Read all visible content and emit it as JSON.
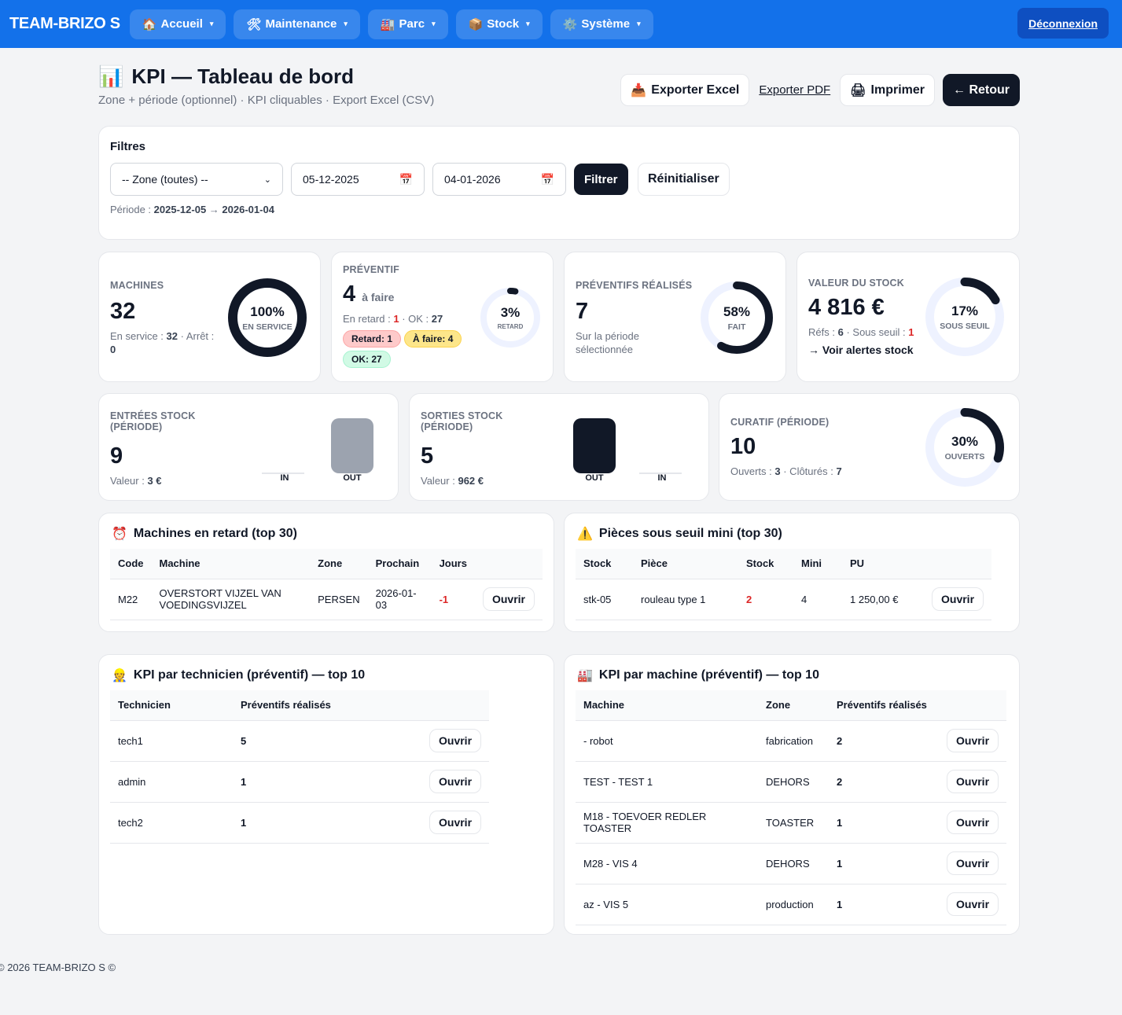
{
  "nav": {
    "brand": "TEAM-BRIZO S",
    "items": [
      {
        "icon": "🏠",
        "label": "Accueil"
      },
      {
        "icon": "🛠",
        "label": "Maintenance"
      },
      {
        "icon": "🏭",
        "label": "Parc"
      },
      {
        "icon": "📦",
        "label": "Stock"
      },
      {
        "icon": "⚙️",
        "label": "Système"
      }
    ],
    "caret": "▾",
    "logout": "Déconnexion"
  },
  "header": {
    "icon": "📊",
    "title": "KPI — Tableau de bord",
    "subtitle": "Zone + période (optionnel) · KPI cliquables · Export Excel (CSV)",
    "export_excel": "Exporter Excel",
    "export_excel_icon": "📥",
    "export_pdf": "Exporter PDF",
    "print": "Imprimer",
    "print_icon": "🖨",
    "back": "← Retour"
  },
  "filters": {
    "title": "Filtres",
    "zone": "-- Zone (toutes) --",
    "date_from": "05-12-2025",
    "date_to": "04-01-2026",
    "filter": "Filtrer",
    "reset": "Réinitialiser",
    "period_label": "Période :",
    "period_from": "2025-12-05",
    "arrow": "→",
    "period_to": "2026-01-04"
  },
  "kpis": {
    "machines": {
      "label": "Machines",
      "value": "32",
      "s1": "En service :",
      "in_service": "32",
      "s2": "· Arrêt :",
      "stopped": "0",
      "percent": 100,
      "pct_text": "100%",
      "donut_label": "En service"
    },
    "preventif": {
      "label": "Préventif",
      "value": "4",
      "unit": "à faire",
      "s1": "En retard :",
      "late": "1",
      "s2": "· OK :",
      "ok": "27",
      "pills": [
        "Retard: 1",
        "À faire: 4",
        "OK: 27"
      ],
      "percent": 3,
      "pct_text": "3%",
      "donut_label": "Retard"
    },
    "realises": {
      "label": "Préventifs réalisés",
      "value": "7",
      "sub": "Sur la période sélectionnée",
      "percent": 58,
      "pct_text": "58%",
      "donut_label": "Fait"
    },
    "stock_value": {
      "label": "Valeur du stock",
      "value": "4 816 €",
      "s1": "Réfs :",
      "refs": "6",
      "s2": "· Sous seuil :",
      "under": "1",
      "link": "→ Voir alertes stock",
      "percent": 17,
      "pct_text": "17%",
      "donut_label": "Sous seuil"
    },
    "entrees": {
      "label": "Entrées stock (période)",
      "value": "9",
      "s1": "Valeur :",
      "amount": "3 €",
      "bars": [
        {
          "label": "IN",
          "value": 0
        },
        {
          "label": "OUT",
          "value": 1
        }
      ]
    },
    "sorties": {
      "label": "Sorties stock (période)",
      "value": "5",
      "s1": "Valeur :",
      "amount": "962 €",
      "bars": [
        {
          "label": "OUT",
          "value": 1
        },
        {
          "label": "IN",
          "value": 0
        }
      ]
    },
    "curatif": {
      "label": "Curatif (période)",
      "value": "10",
      "s1": "Ouverts :",
      "open": "3",
      "s2": "· Clôturés :",
      "closed": "7",
      "percent": 30,
      "pct_text": "30%",
      "donut_label": "Ouverts"
    }
  },
  "colors": {
    "nav": "#1371ea",
    "dark": "#111827",
    "track": "#eef2ff",
    "danger": "#dc2626"
  },
  "late_machines": {
    "icon": "⏰",
    "title": "Machines en retard (top 30)",
    "headers": [
      "Code",
      "Machine",
      "Zone",
      "Prochain",
      "Jours"
    ],
    "rows": [
      {
        "code": "M22",
        "machine": "OVERSTORT VIJZEL VAN VOEDINGSVIJZEL",
        "zone": "PERSEN",
        "next": "2026-01-03",
        "days": "-1",
        "action": "Ouvrir"
      }
    ]
  },
  "low_stock": {
    "icon": "⚠️",
    "title": "Pièces sous seuil mini (top 30)",
    "headers": [
      "Stock",
      "Pièce",
      "Stock",
      "Mini",
      "PU"
    ],
    "rows": [
      {
        "ref": "stk-05",
        "piece": "rouleau type 1",
        "stock": "2",
        "mini": "4",
        "pu": "1 250,00 €",
        "action": "Ouvrir"
      }
    ]
  },
  "tech": {
    "icon": "👷",
    "title": "KPI par technicien (préventif) — top 10",
    "headers": [
      "Technicien",
      "Préventifs réalisés"
    ],
    "rows": [
      {
        "name": "tech1",
        "count": "5",
        "action": "Ouvrir"
      },
      {
        "name": "admin",
        "count": "1",
        "action": "Ouvrir"
      },
      {
        "name": "tech2",
        "count": "1",
        "action": "Ouvrir"
      }
    ]
  },
  "machine": {
    "icon": "🏭",
    "title": "KPI par machine (préventif) — top 10",
    "headers": [
      "Machine",
      "Zone",
      "Préventifs réalisés"
    ],
    "rows": [
      {
        "name": "- robot",
        "zone": "fabrication",
        "count": "2",
        "action": "Ouvrir"
      },
      {
        "name": "TEST - TEST 1",
        "zone": "DEHORS",
        "count": "2",
        "action": "Ouvrir"
      },
      {
        "name": "M18 - TOEVOER REDLER TOASTER",
        "zone": "TOASTER",
        "count": "1",
        "action": "Ouvrir"
      },
      {
        "name": "M28 - VIS 4",
        "zone": "DEHORS",
        "count": "1",
        "action": "Ouvrir"
      },
      {
        "name": "az - VIS 5",
        "zone": "production",
        "count": "1",
        "action": "Ouvrir"
      }
    ]
  },
  "footer": "© 2026 TEAM-BRIZO S ©"
}
